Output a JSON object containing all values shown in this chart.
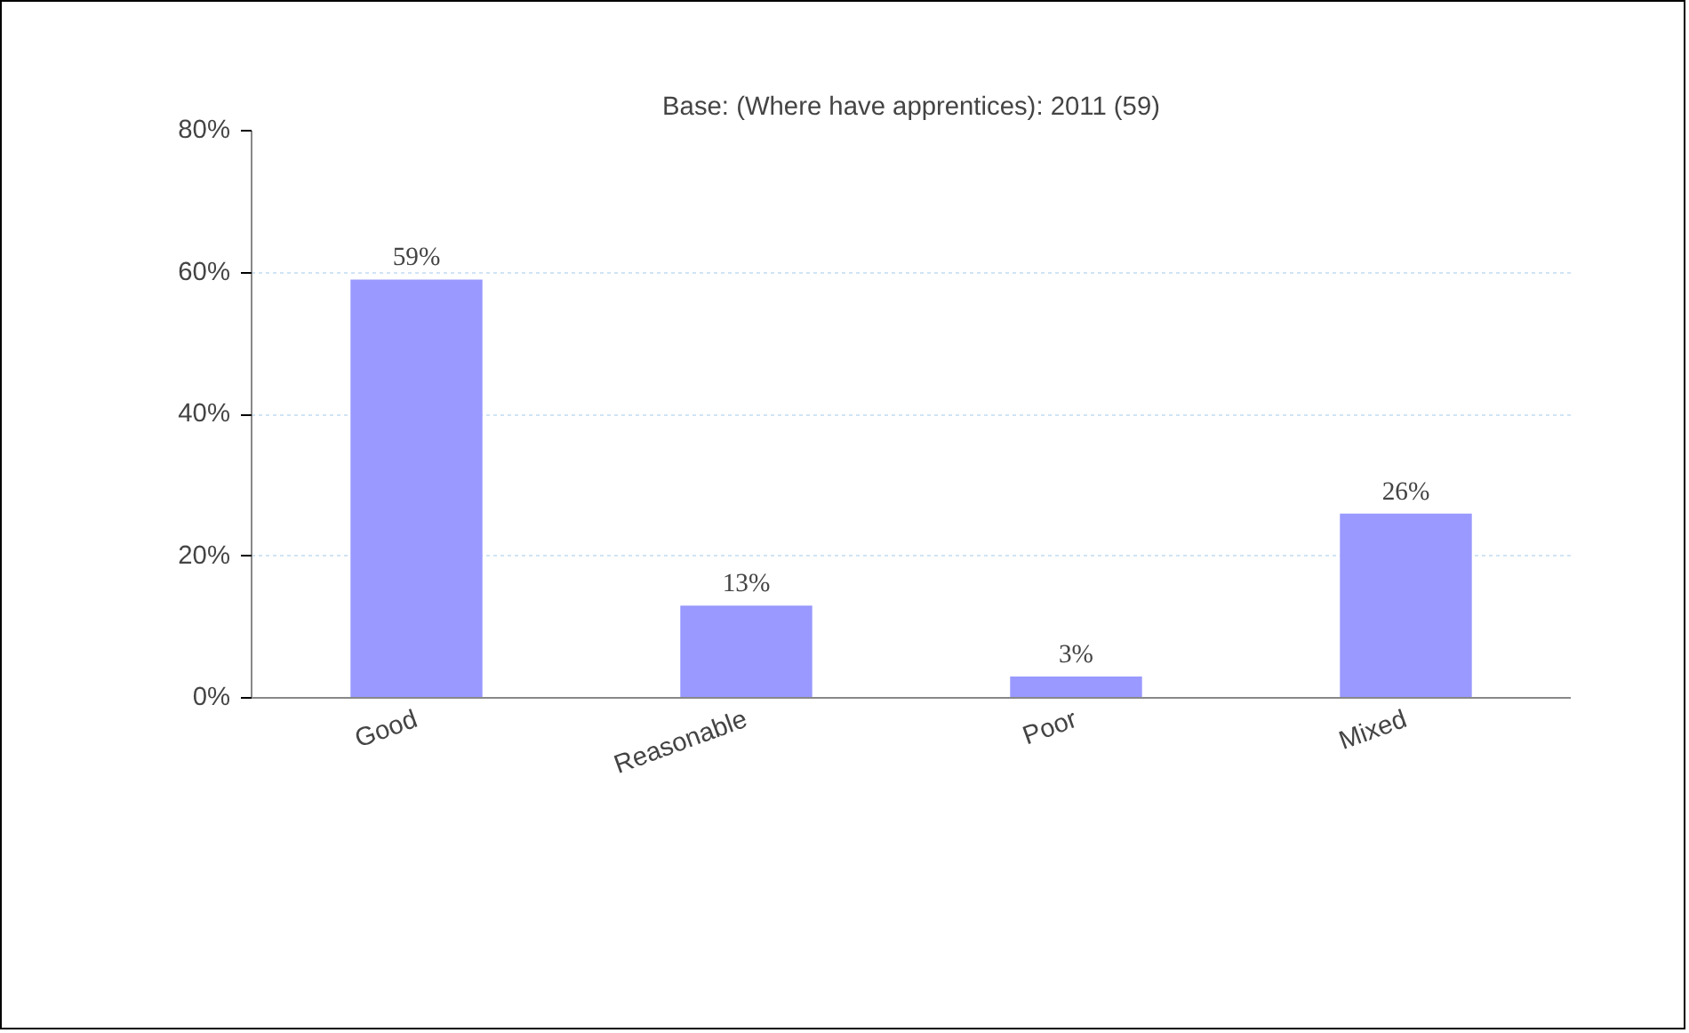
{
  "chart_data": {
    "type": "bar",
    "title": "Base: (Where have apprentices): 2011 (59)",
    "categories": [
      "Good",
      "Reasonable",
      "Poor",
      "Mixed"
    ],
    "values": [
      59,
      13,
      3,
      26
    ],
    "value_labels": [
      "59%",
      "13%",
      "3%",
      "26%"
    ],
    "color": "#9999ff",
    "ylim": [
      0,
      80
    ],
    "yticks": [
      {
        "value": 0,
        "label": "0%"
      },
      {
        "value": 20,
        "label": "20%"
      },
      {
        "value": 40,
        "label": "40%"
      },
      {
        "value": 60,
        "label": "60%"
      },
      {
        "value": 80,
        "label": "80%"
      }
    ],
    "grid": "y"
  }
}
